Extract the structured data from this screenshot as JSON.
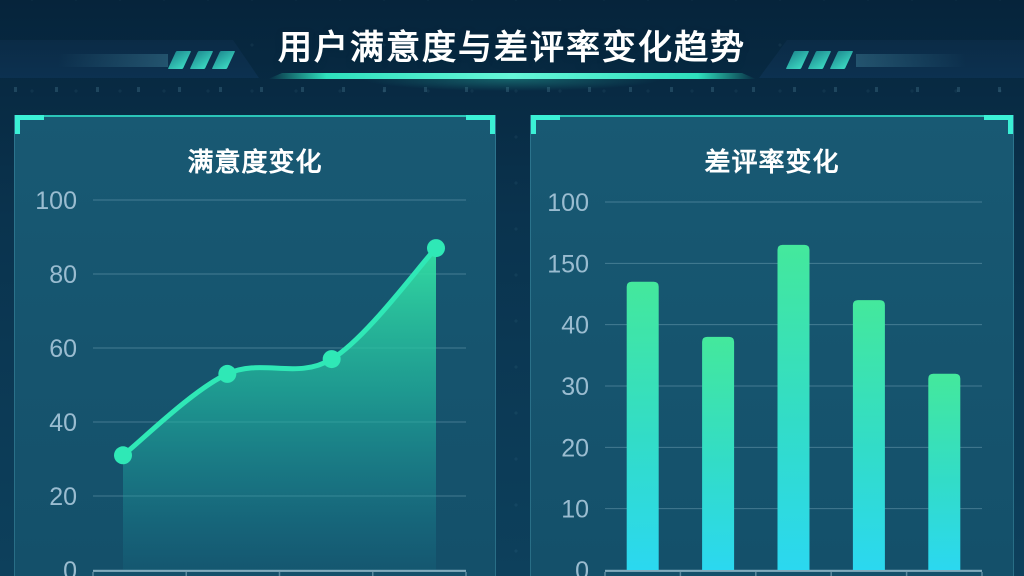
{
  "page": {
    "title": "用户满意度与差评率变化趋势"
  },
  "colors": {
    "accent_teal": "#3BF0D6",
    "line_green": "#2FE8B6",
    "area_top": "#34E2A4",
    "area_mid": "#22B9A0",
    "area_bottom": "#1A96A5",
    "bar_top": "#44E89C",
    "bar_mid": "#32DCC8",
    "bar_bottom": "#2BD8F0",
    "panel_bg": "#17566F",
    "page_bg": "#0A3350",
    "tick_label": "#A9C8DB",
    "grid_line": "rgba(190,225,240,0.28)",
    "axis_line": "rgba(200,230,240,0.55)",
    "title_text": "#FFFFFF"
  },
  "panels": [
    {
      "title": "满意度变化"
    },
    {
      "title": "差评率变化"
    }
  ],
  "chart_data": [
    {
      "type": "area",
      "title": "满意度变化",
      "values": [
        31,
        53,
        57,
        87
      ],
      "y_ticks_top_to_bottom": [
        "100",
        "80",
        "60",
        "40",
        "20",
        "0"
      ],
      "ylim": [
        0,
        100
      ],
      "grid": true,
      "x_tick_labels_visible": false,
      "legend": "none"
    },
    {
      "type": "bar",
      "title": "差评率变化",
      "values": [
        47,
        38,
        53,
        44,
        32
      ],
      "y_ticks_top_to_bottom": [
        "100",
        "150",
        "40",
        "30",
        "20",
        "10",
        "0"
      ],
      "y_scale_note": "ticks evenly spaced, 10 value-units per tick interval (labels shown as printed)",
      "ylim": [
        0,
        60
      ],
      "grid": true,
      "x_tick_labels_visible": false,
      "legend": "none"
    }
  ]
}
